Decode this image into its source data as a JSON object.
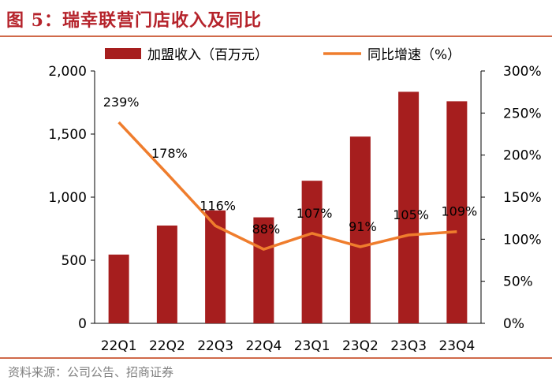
{
  "title": "图 5：瑞幸联营门店收入及同比",
  "source": "资料来源：公司公告、招商证券",
  "colors": {
    "bar": "#a61e1e",
    "line": "#ef7d2d",
    "title": "#b5232b",
    "rule": "#d06a4a"
  },
  "chart_data": {
    "type": "bar",
    "categories": [
      "22Q1",
      "22Q2",
      "22Q3",
      "22Q4",
      "23Q1",
      "23Q2",
      "23Q3",
      "23Q4"
    ],
    "series": [
      {
        "name": "加盟收入（百万元）",
        "type": "bar",
        "axis": "left",
        "values": [
          545,
          775,
          895,
          840,
          1130,
          1480,
          1835,
          1760
        ]
      },
      {
        "name": "同比增速（%）",
        "type": "line",
        "axis": "right",
        "values": [
          239,
          178,
          116,
          88,
          107,
          91,
          105,
          109
        ],
        "labels": [
          "239%",
          "178%",
          "116%",
          "88%",
          "107%",
          "91%",
          "105%",
          "109%"
        ]
      }
    ],
    "y_left": {
      "ylim": [
        0,
        2000
      ],
      "ticks": [
        0,
        500,
        1000,
        1500,
        2000
      ],
      "tick_labels": [
        "0",
        "500",
        "1,000",
        "1,500",
        "2,000"
      ]
    },
    "y_right": {
      "ylim": [
        0,
        300
      ],
      "ticks": [
        0,
        50,
        100,
        150,
        200,
        250,
        300
      ],
      "tick_labels": [
        "0%",
        "50%",
        "100%",
        "150%",
        "200%",
        "250%",
        "300%"
      ]
    },
    "legend_position": "top",
    "grid": false
  }
}
